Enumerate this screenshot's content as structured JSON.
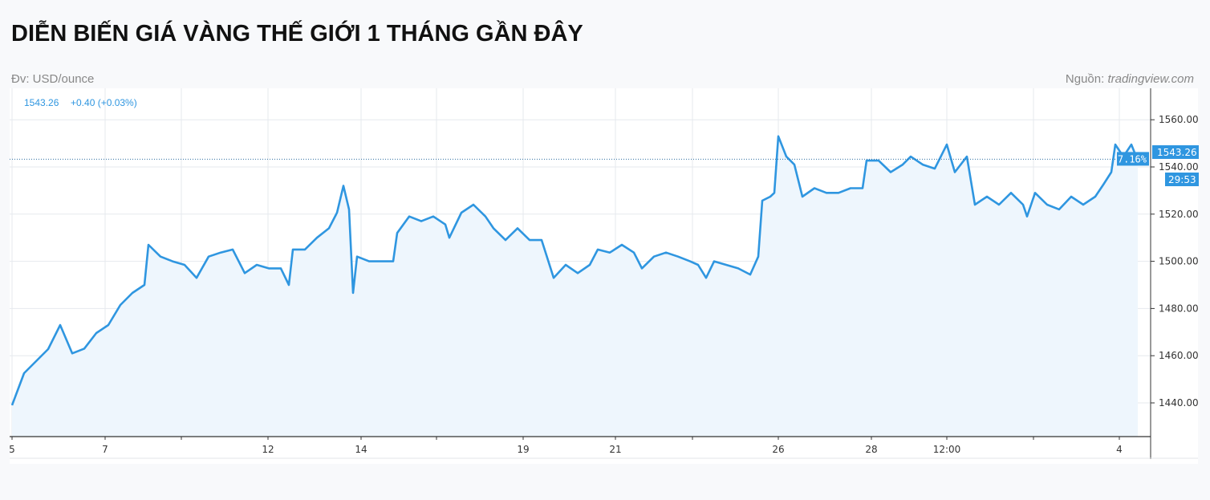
{
  "header": {
    "title": "DIỄN BIẾN GIÁ VÀNG THẾ GIỚI 1 THÁNG GẦN ĐÂY",
    "unit": "Đv: USD/ounce",
    "source_label": "Nguồn:",
    "source_site": "tradingview.com"
  },
  "chart_data": {
    "type": "area",
    "legend": {
      "price": "1543.26",
      "change": "+0.40 (+0.03%)"
    },
    "ylim": [
      1430,
      1570
    ],
    "yticks": [
      "1440.00",
      "1460.00",
      "1480.00",
      "1500.00",
      "1520.00",
      "1540.00",
      "1560.00"
    ],
    "xticks": [
      "5",
      "7",
      "12",
      "14",
      "19",
      "21",
      "26",
      "28",
      "12:00",
      "4"
    ],
    "grid": true,
    "last_price": 1543.26,
    "labels": {
      "percent": "7.16%",
      "price": "1543.26",
      "countdown": "29:53"
    },
    "colors": {
      "line": "#2f96e0",
      "fill": "#eef6fd",
      "text_accent": "#2f96e0",
      "axis": "#333333"
    },
    "values": [
      1439,
      1452.6,
      1457.7,
      1462.8,
      1473,
      1461,
      1463,
      1469.6,
      1473,
      1481.5,
      1486.6,
      1490,
      1507,
      1502,
      1500,
      1498.5,
      1493,
      1502,
      1503.7,
      1505,
      1495,
      1498.5,
      1497,
      1497,
      1490,
      1505,
      1505,
      1510,
      1514,
      1520.6,
      1532,
      1522,
      1486.6,
      1502,
      1500,
      1500,
      1500,
      1512,
      1519,
      1517,
      1519,
      1515.6,
      1510,
      1520.6,
      1524,
      1519,
      1514,
      1509,
      1514,
      1509,
      1509,
      1493,
      1498.5,
      1495,
      1498.5,
      1505,
      1503.7,
      1507,
      1503.7,
      1497,
      1502,
      1503.7,
      1502,
      1500,
      1498.5,
      1493,
      1500,
      1498.5,
      1497,
      1494.4,
      1502,
      1525.7,
      1527.4,
      1529,
      1553,
      1544.4,
      1541,
      1527.4,
      1531,
      1529,
      1529,
      1531,
      1531,
      1542.7,
      1542.7,
      1537.8,
      1541,
      1544.4,
      1541,
      1539.3,
      1549.5,
      1537.8,
      1544.4,
      1524,
      1527.4,
      1524,
      1529,
      1524,
      1519,
      1529,
      1524,
      1522,
      1527.4,
      1524,
      1527.4,
      1532.5,
      1537.8,
      1549.5,
      1544.4,
      1549.5,
      1542.7
    ]
  }
}
